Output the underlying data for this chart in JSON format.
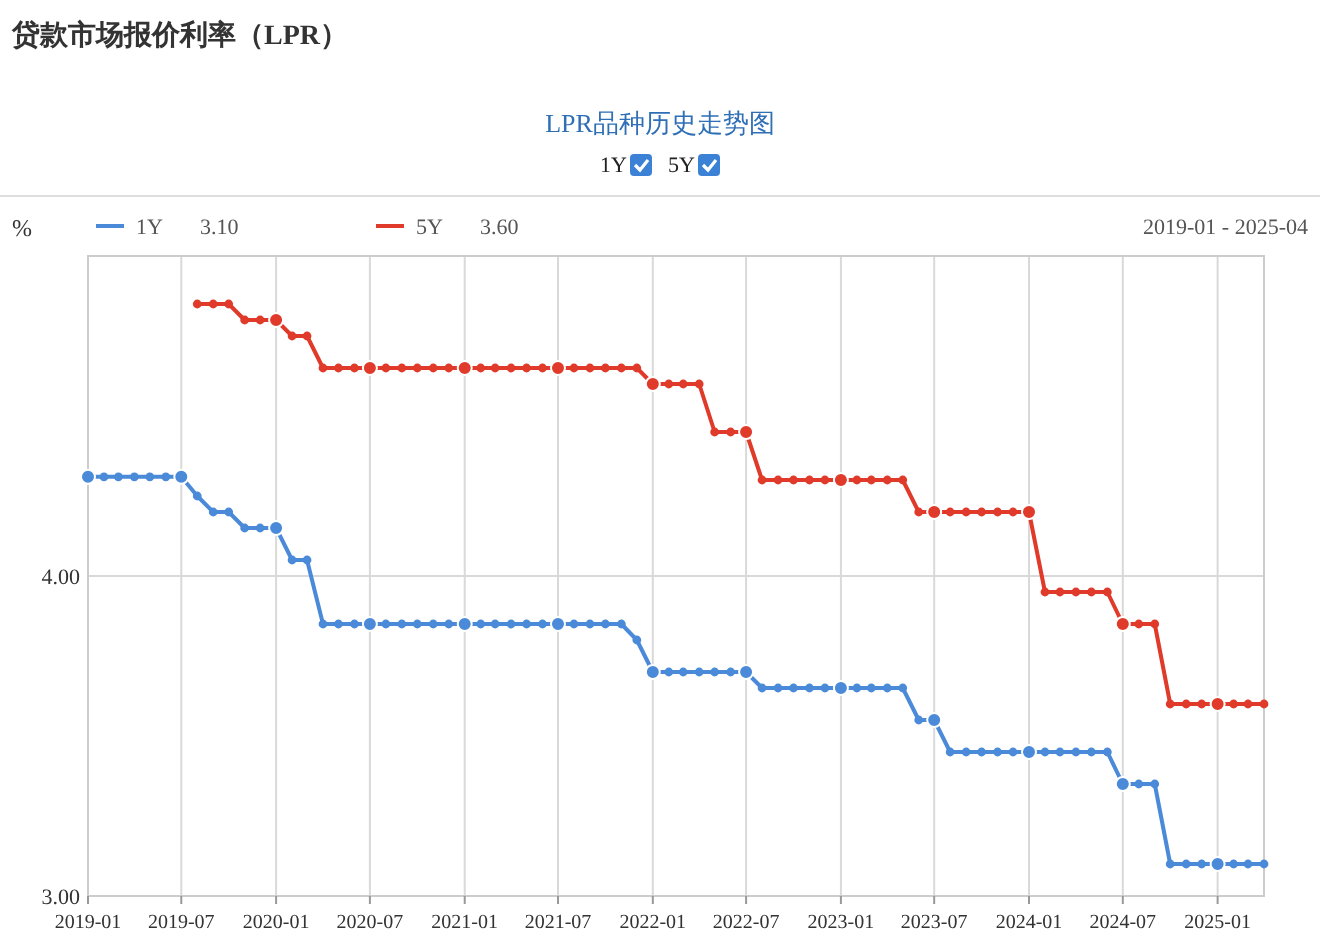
{
  "chart_data": {
    "type": "line",
    "title": "贷款市场报价利率（LPR）",
    "subtitle": "LPR品种历史走势图",
    "ylabel": "%",
    "annotations": [
      "3.10",
      "3.60",
      "2019-01 - 2025-04"
    ],
    "x": [
      "2019-01",
      "2019-02",
      "2019-03",
      "2019-04",
      "2019-05",
      "2019-06",
      "2019-07",
      "2019-08",
      "2019-09",
      "2019-10",
      "2019-11",
      "2019-12",
      "2020-01",
      "2020-02",
      "2020-03",
      "2020-04",
      "2020-05",
      "2020-06",
      "2020-07",
      "2020-08",
      "2020-09",
      "2020-10",
      "2020-11",
      "2020-12",
      "2021-01",
      "2021-02",
      "2021-03",
      "2021-04",
      "2021-05",
      "2021-06",
      "2021-07",
      "2021-08",
      "2021-09",
      "2021-10",
      "2021-11",
      "2021-12",
      "2022-01",
      "2022-02",
      "2022-03",
      "2022-04",
      "2022-05",
      "2022-06",
      "2022-07",
      "2022-08",
      "2022-09",
      "2022-10",
      "2022-11",
      "2022-12",
      "2023-01",
      "2023-02",
      "2023-03",
      "2023-04",
      "2023-05",
      "2023-06",
      "2023-07",
      "2023-08",
      "2023-09",
      "2023-10",
      "2023-11",
      "2023-12",
      "2024-01",
      "2024-02",
      "2024-03",
      "2024-04",
      "2024-05",
      "2024-06",
      "2024-07",
      "2024-08",
      "2024-09",
      "2024-10",
      "2024-11",
      "2024-12",
      "2025-01",
      "2025-02",
      "2025-03",
      "2025-04"
    ],
    "series": [
      {
        "name": "1Y",
        "color": "#4a8ad8",
        "values": [
          4.31,
          4.31,
          4.31,
          4.31,
          4.31,
          4.31,
          4.31,
          4.25,
          4.2,
          4.2,
          4.15,
          4.15,
          4.15,
          4.05,
          4.05,
          3.85,
          3.85,
          3.85,
          3.85,
          3.85,
          3.85,
          3.85,
          3.85,
          3.85,
          3.85,
          3.85,
          3.85,
          3.85,
          3.85,
          3.85,
          3.85,
          3.85,
          3.85,
          3.85,
          3.85,
          3.8,
          3.7,
          3.7,
          3.7,
          3.7,
          3.7,
          3.7,
          3.7,
          3.65,
          3.65,
          3.65,
          3.65,
          3.65,
          3.65,
          3.65,
          3.65,
          3.65,
          3.65,
          3.55,
          3.55,
          3.45,
          3.45,
          3.45,
          3.45,
          3.45,
          3.45,
          3.45,
          3.45,
          3.45,
          3.45,
          3.45,
          3.35,
          3.35,
          3.35,
          3.1,
          3.1,
          3.1,
          3.1,
          3.1,
          3.1,
          3.1
        ]
      },
      {
        "name": "5Y",
        "color": "#e03a2a",
        "values": [
          null,
          null,
          null,
          null,
          null,
          null,
          null,
          4.85,
          4.85,
          4.85,
          4.8,
          4.8,
          4.8,
          4.75,
          4.75,
          4.65,
          4.65,
          4.65,
          4.65,
          4.65,
          4.65,
          4.65,
          4.65,
          4.65,
          4.65,
          4.65,
          4.65,
          4.65,
          4.65,
          4.65,
          4.65,
          4.65,
          4.65,
          4.65,
          4.65,
          4.65,
          4.6,
          4.6,
          4.6,
          4.6,
          4.45,
          4.45,
          4.45,
          4.3,
          4.3,
          4.3,
          4.3,
          4.3,
          4.3,
          4.3,
          4.3,
          4.3,
          4.3,
          4.2,
          4.2,
          4.2,
          4.2,
          4.2,
          4.2,
          4.2,
          4.2,
          3.95,
          3.95,
          3.95,
          3.95,
          3.95,
          3.85,
          3.85,
          3.85,
          3.6,
          3.6,
          3.6,
          3.6,
          3.6,
          3.6,
          3.6
        ]
      }
    ],
    "xlim": [
      "2019-01",
      "2025-04"
    ],
    "xticks": [
      "2019-01",
      "2019-07",
      "2020-01",
      "2020-07",
      "2021-01",
      "2021-07",
      "2022-01",
      "2022-07",
      "2023-01",
      "2023-07",
      "2024-01",
      "2024-07",
      "2025-01"
    ],
    "ylim": [
      3.0,
      5.0
    ],
    "yticks": [
      {
        "value": 3,
        "label": "3.00"
      },
      {
        "value": 4,
        "label": "4.00"
      }
    ],
    "grid": true,
    "legend": "top left",
    "marker": "circle",
    "line_style": "solid"
  }
}
